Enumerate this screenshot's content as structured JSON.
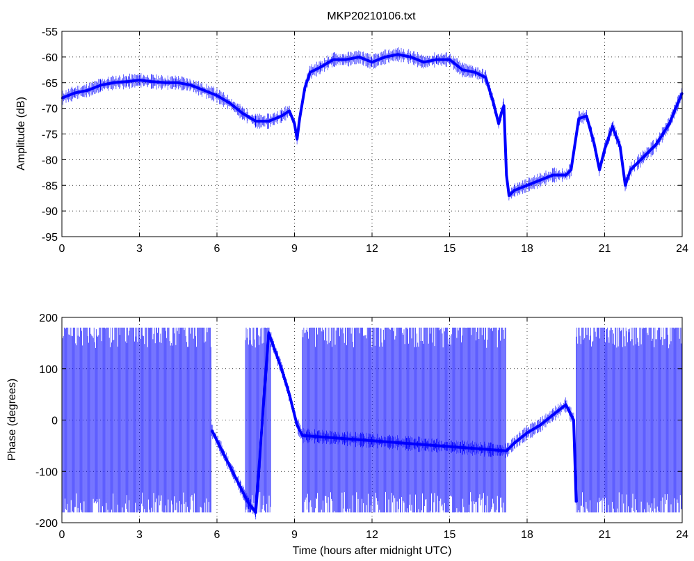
{
  "figure_title": "MKP20210106.txt",
  "colors": {
    "trace": "#0000ff",
    "axes": "#000000",
    "grid": "#000000",
    "background": "#ffffff"
  },
  "chart_data": [
    {
      "type": "line",
      "title": "MKP20210106.txt",
      "xlabel": "",
      "ylabel": "Amplitude (dB)",
      "xlim": [
        0,
        24
      ],
      "ylim": [
        -95,
        -55
      ],
      "xticks": [
        0,
        3,
        6,
        9,
        12,
        15,
        18,
        21,
        24
      ],
      "yticks": [
        -55,
        -60,
        -65,
        -70,
        -75,
        -80,
        -85,
        -90,
        -95
      ],
      "grid": true,
      "series": [
        {
          "x": [
            0,
            0.5,
            1,
            1.5,
            2,
            2.5,
            3,
            3.5,
            4,
            4.4,
            4.5,
            5,
            5.5,
            6,
            6.5,
            7,
            7.5,
            8,
            8.5,
            8.8,
            9.0,
            9.1,
            9.2,
            9.4,
            9.6,
            10,
            10.5,
            11,
            11.5,
            12,
            12.5,
            13,
            13.5,
            14,
            14.5,
            15,
            15.5,
            16,
            16.4,
            16.7,
            16.9,
            17.0,
            17.1,
            17.2,
            17.3,
            17.5,
            18,
            18.5,
            19,
            19.5,
            19.7,
            20,
            20.3,
            20.6,
            20.8,
            21,
            21.3,
            21.6,
            21.8,
            22,
            22.5,
            23,
            23.5,
            24
          ],
          "y": [
            -68,
            -67,
            -66.5,
            -65.5,
            -65,
            -64.8,
            -64.5,
            -64.8,
            -65,
            -65,
            -65,
            -65.5,
            -66.5,
            -67.5,
            -69,
            -71,
            -72.5,
            -72.5,
            -71.5,
            -70.5,
            -73,
            -76,
            -72,
            -66,
            -63,
            -62,
            -60.5,
            -60.5,
            -60,
            -61,
            -60,
            -59.5,
            -60,
            -61,
            -60.5,
            -60.5,
            -62.5,
            -63,
            -64,
            -69,
            -73,
            -71,
            -69.5,
            -83,
            -87,
            -86,
            -85,
            -84,
            -83,
            -83,
            -82,
            -72,
            -71.5,
            -77,
            -82,
            -78,
            -73.5,
            -77.5,
            -85,
            -82,
            -79.5,
            -77,
            -73,
            -67
          ]
        }
      ]
    },
    {
      "type": "scatter",
      "title": "",
      "xlabel": "Time (hours after midnight UTC)",
      "ylabel": "Phase (degrees)",
      "xlim": [
        0,
        24
      ],
      "ylim": [
        -200,
        200
      ],
      "xticks": [
        0,
        3,
        6,
        9,
        12,
        15,
        18,
        21,
        24
      ],
      "yticks": [
        200,
        100,
        0,
        -100,
        -200
      ],
      "grid": true,
      "wrapped_band_segments": [
        {
          "x_range": [
            0,
            5.8
          ],
          "y_range": [
            -180,
            180
          ]
        },
        {
          "x_range": [
            7.1,
            8.1
          ],
          "y_range": [
            -180,
            180
          ]
        },
        {
          "x_range": [
            9.3,
            17.2
          ],
          "y_range": [
            -180,
            180
          ]
        },
        {
          "x_range": [
            19.9,
            24
          ],
          "y_range": [
            -180,
            180
          ]
        }
      ],
      "series": [
        {
          "x": [
            5.8,
            6.0,
            6.3,
            6.6,
            6.9,
            7.2,
            7.5,
            8.0,
            8.5,
            8.8,
            9.1,
            9.3,
            17.2,
            17.5,
            18,
            18.5,
            19,
            19.5,
            19.8,
            19.9
          ],
          "y": [
            -20,
            -40,
            -70,
            -100,
            -130,
            -160,
            -180,
            170,
            100,
            50,
            -10,
            -30,
            -60,
            -45,
            -25,
            -10,
            10,
            30,
            0,
            -160
          ]
        }
      ]
    }
  ]
}
